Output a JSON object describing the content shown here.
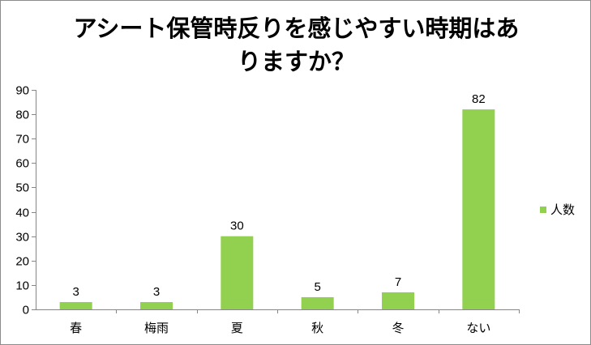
{
  "chart_data": {
    "type": "bar",
    "title_line1": "アシート保管時反りを感じやすい時期はあ",
    "title_line2": "りますか？",
    "categories": [
      "春",
      "梅雨",
      "夏",
      "秋",
      "冬",
      "ない"
    ],
    "series": [
      {
        "name": "人数",
        "values": [
          3,
          3,
          30,
          5,
          7,
          82
        ],
        "color": "#92d050"
      }
    ],
    "ylim": [
      0,
      90
    ],
    "yticks": [
      0,
      10,
      20,
      30,
      40,
      50,
      60,
      70,
      80,
      90
    ],
    "data_labels": [
      "3",
      "3",
      "30",
      "5",
      "7",
      "82"
    ],
    "grid": false,
    "legend_position": "right"
  }
}
